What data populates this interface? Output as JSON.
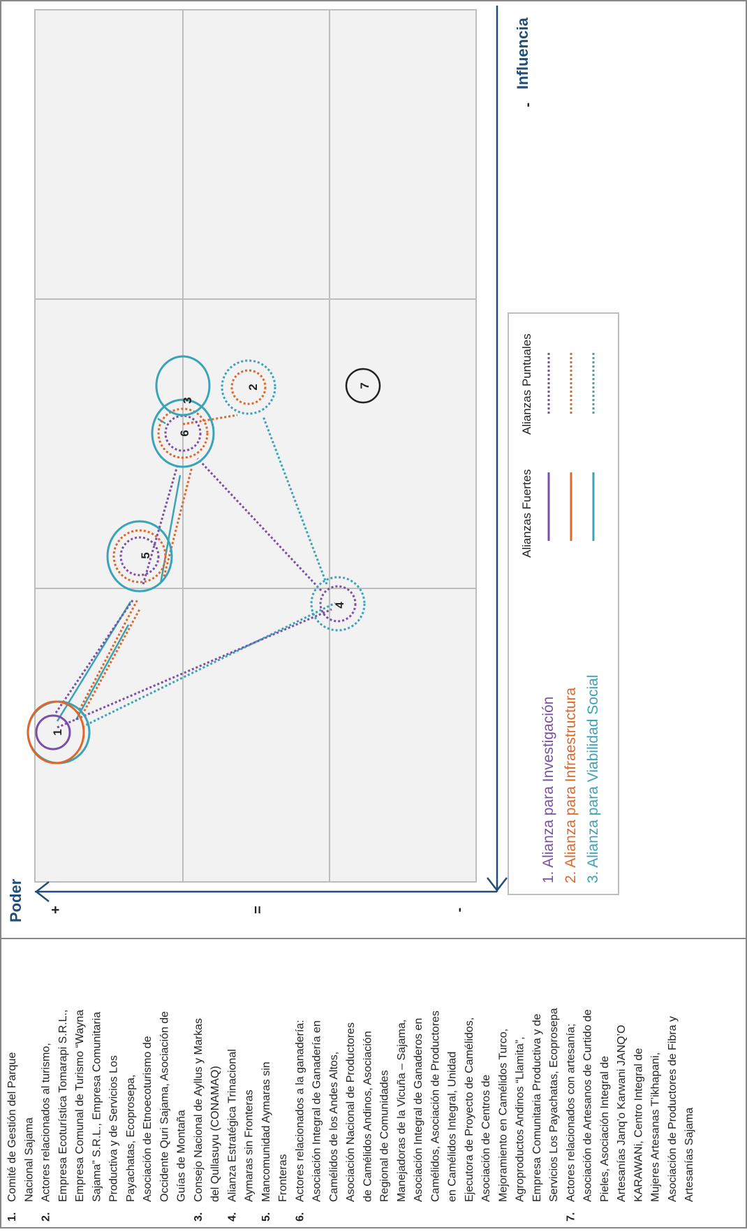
{
  "axes": {
    "poder_label": "Poder",
    "influencia_label": "Influencia",
    "poder_ticks": [
      "+",
      "=",
      "-"
    ],
    "influencia_ticks": [
      "+",
      "=",
      "-"
    ]
  },
  "actor_list": [
    {
      "number": "1.",
      "lines": [
        "Comité de Gestión del Parque",
        "Nacional Sajama"
      ]
    },
    {
      "number": "2.",
      "lines": [
        "Actores relacionados al turismo,",
        "Empresa Ecoturística Tomarapi S.R.L.,",
        "Empresa Comunal de Turismo “Wayna",
        "Sajama” S.R.L., Empresa Comunitaria",
        "Productiva y de Servicios Los",
        "Payachatas, Ecoprosepa,",
        "Asociación de Etnoecoturismo de",
        "Occidente Quri Sajama, Asociación de",
        "Guías de Montaña"
      ]
    },
    {
      "number": "3.",
      "lines": [
        "Consejo Nacional de Ayllus y Markas",
        "del Qullasuyu (CONAMAQ)"
      ]
    },
    {
      "number": "4.",
      "lines": [
        "Alianza Estratégica Trinacional",
        "Aymaras sin Fronteras"
      ]
    },
    {
      "number": "5.",
      "lines": [
        "Mancomunidad Aymaras sin",
        "Fronteras"
      ]
    },
    {
      "number": "6.",
      "lines": [
        "Actores relacionados a la ganadería:",
        "Asociación Integral de Ganadería en",
        "Camélidos de los Andes Altos,",
        "Asociación Nacional de Productores",
        "de Camélidos Andinos, Asociación",
        "Regional de Comunidades",
        "Manejadoras de la Vicuña – Sajama,",
        "Asociación Integral de Ganaderos en",
        "Camélidos, Asociación de Productores",
        "en Camélidos Integral, Unidad",
        "Ejecutora de Proyecto de Camélidos,",
        "Asociación de Centros de",
        "Mejoramiento en Camélidos Turco,",
        "Agroproductos Andinos “Llamita”,",
        "Empresa Comunitaria Productiva y de",
        "Servicios Los Payachatas, Ecoprosepa"
      ]
    },
    {
      "number": "7.",
      "lines": [
        "Actores relacionados con artesanía;",
        "Asociación de Artesanos de Curtido de",
        "Pieles, Asociación Integral de",
        "Artesanías Janq’o Karwani JANQ’O",
        "KARAWANi, Centro Integral de",
        "Mujeres Artesanas T’ikhapani,",
        "Asociación de Productores de Fibra y",
        "Artesanías Sajama"
      ]
    }
  ],
  "nodes": [
    {
      "id": "1",
      "label": "1"
    },
    {
      "id": "2",
      "label": "2"
    },
    {
      "id": "3",
      "label": "3"
    },
    {
      "id": "4",
      "label": "4"
    },
    {
      "id": "5",
      "label": "5"
    },
    {
      "id": "6",
      "label": "6"
    },
    {
      "id": "7",
      "label": "7"
    }
  ],
  "legend": {
    "header_strong": "Alianzas Fuertes",
    "header_point": "Alianzas Puntuales",
    "alliances": [
      {
        "label": "1. Alianza para Investigación",
        "color": "#7b4fa6"
      },
      {
        "label": "2. Alianza para Infraestructura",
        "color": "#e0672a"
      },
      {
        "label": "3. Alianza para Viabilidad Social",
        "color": "#3aa3b7"
      }
    ]
  }
}
